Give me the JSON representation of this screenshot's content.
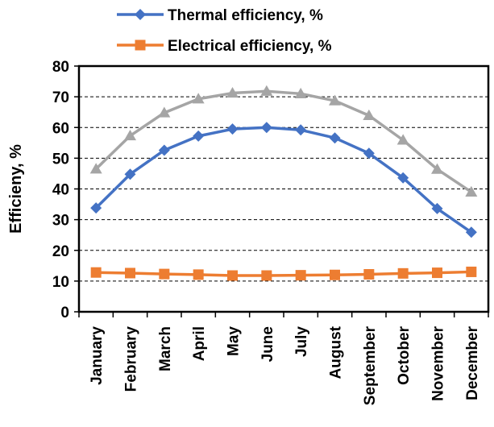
{
  "chart_data": {
    "type": "line",
    "title": "",
    "xlabel": "",
    "ylabel": "Efficieny, %",
    "ylim": [
      0,
      80
    ],
    "yticks": [
      0,
      10,
      20,
      30,
      40,
      50,
      60,
      70,
      80
    ],
    "grid": "horizontal dashed",
    "legend_position": "top",
    "categories": [
      "January",
      "February",
      "March",
      "April",
      "May",
      "June",
      "July",
      "August",
      "September",
      "October",
      "November",
      "December"
    ],
    "series": [
      {
        "name": "Thermal efficiency, %",
        "color": "#4472C4",
        "marker": "diamond",
        "values": [
          33.8,
          44.8,
          52.6,
          57.2,
          59.5,
          60.0,
          59.2,
          56.6,
          51.6,
          43.6,
          33.6,
          25.9
        ]
      },
      {
        "name": "",
        "color": "#A5A5A5",
        "marker": "triangle",
        "values": [
          46.5,
          57.3,
          64.8,
          69.3,
          71.2,
          71.8,
          71.0,
          68.7,
          63.9,
          55.9,
          46.4,
          39.0
        ]
      },
      {
        "name": "Electrical efficiency, %",
        "color": "#ED7D31",
        "marker": "square",
        "values": [
          12.8,
          12.6,
          12.3,
          12.1,
          11.8,
          11.8,
          11.9,
          12.0,
          12.2,
          12.5,
          12.7,
          13.0
        ]
      }
    ]
  }
}
